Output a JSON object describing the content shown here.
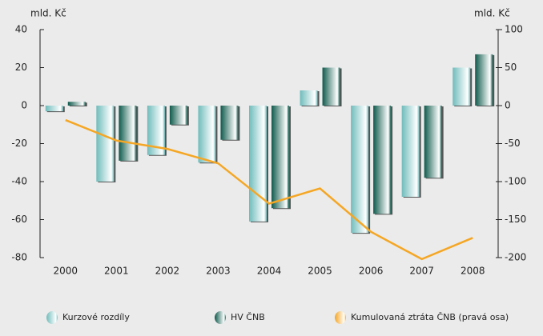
{
  "chart_data": {
    "type": "bar",
    "y_label": "mld. Kč",
    "y2_label": "mld. Kč",
    "categories": [
      "2000",
      "2001",
      "2002",
      "2003",
      "2004",
      "2005",
      "2006",
      "2007",
      "2008"
    ],
    "series": [
      {
        "name": "Kurzové rozdíly",
        "color": "#6fbcbb",
        "values": [
          -3,
          -40,
          -26,
          -30,
          -61,
          8,
          -67,
          -48,
          20
        ]
      },
      {
        "name": "HV ČNB",
        "color": "#0f5a4c",
        "values": [
          2,
          -29,
          -10,
          -18,
          -54,
          20,
          -57,
          -38,
          27
        ]
      },
      {
        "name": "Kumulovaná ztráta ČNB (pravá osa)",
        "color": "#f5a623",
        "type": "line",
        "axis": "y2",
        "values": [
          -19,
          -46,
          -57,
          -76,
          -129,
          -109,
          -166,
          -202,
          -174
        ]
      }
    ],
    "ylim": [
      -80,
      40
    ],
    "yticks": [
      40,
      20,
      0,
      -20,
      -40,
      -60,
      -80
    ],
    "y2lim": [
      -200,
      100
    ],
    "y2ticks": [
      100,
      50,
      0,
      -50,
      -100,
      -150,
      -200
    ]
  }
}
